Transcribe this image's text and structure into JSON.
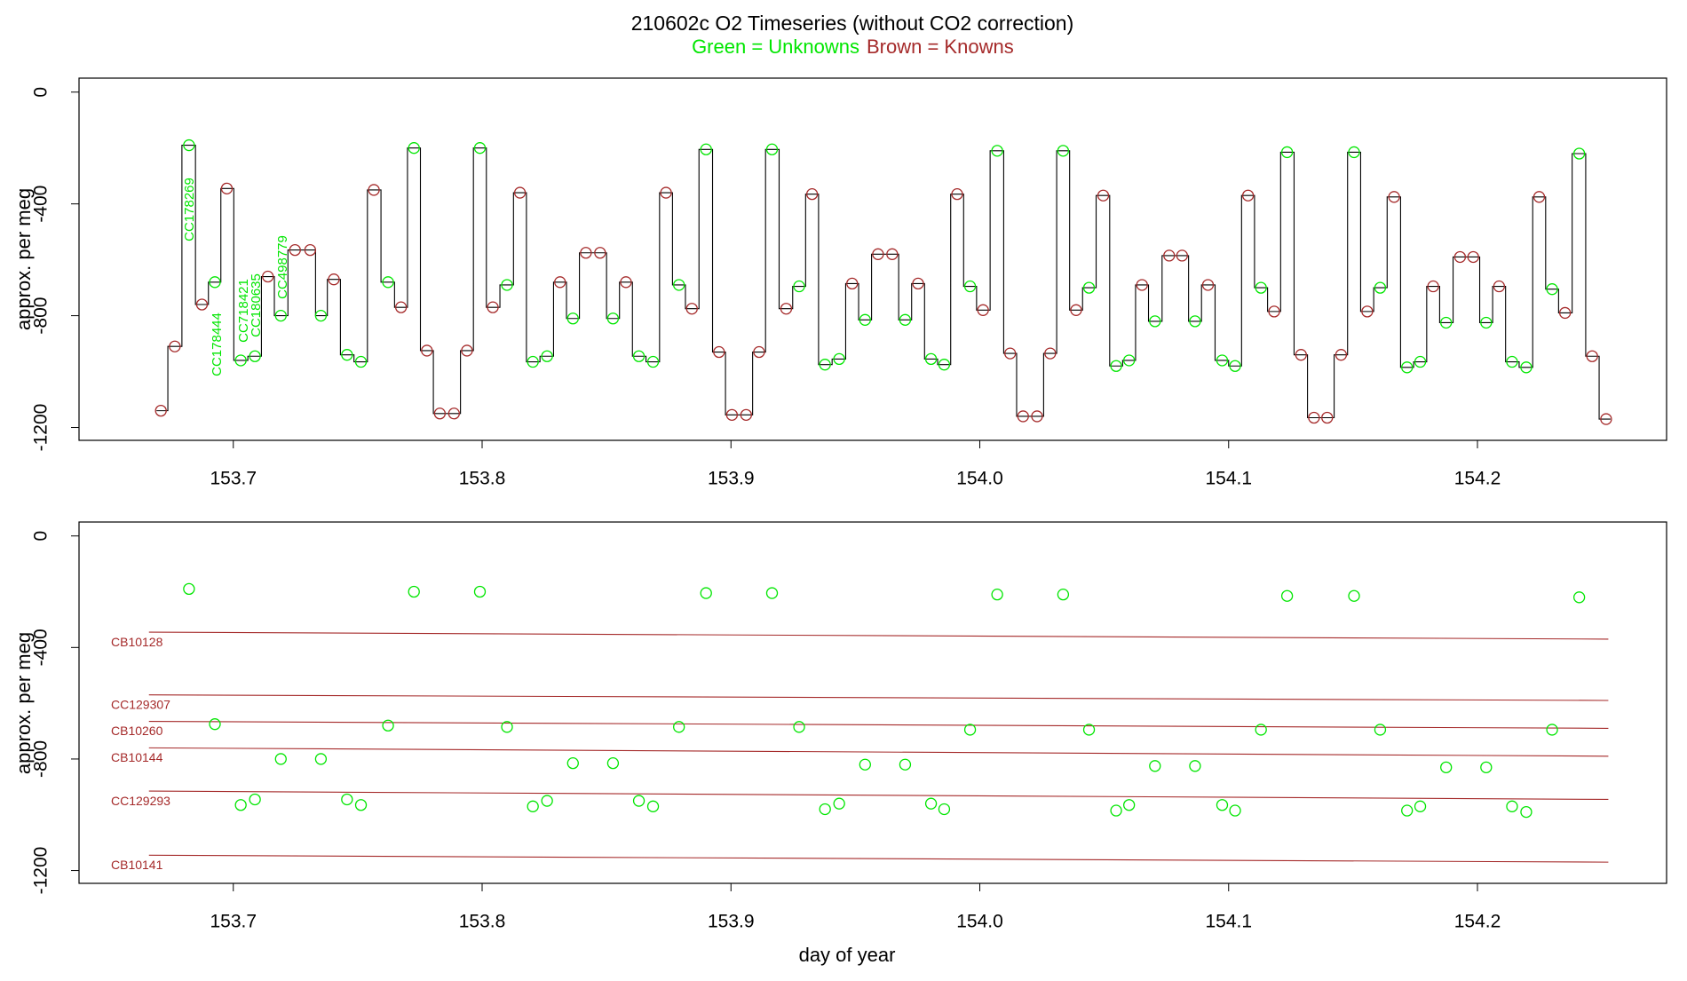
{
  "chart_data": [
    {
      "type": "line",
      "title": "210602c   O2 Timeseries (without CO2 correction)",
      "ylabel": "approx. per meg",
      "xlim": [
        153.638,
        154.276
      ],
      "ylim": [
        -1246,
        50
      ],
      "xticks": [
        153.7,
        153.8,
        153.9,
        {
          "value": 154,
          "label": "154.0"
        },
        154.1,
        154.2
      ],
      "yticks": [
        -1200,
        -800,
        -400,
        0
      ],
      "trace_color": "#000000",
      "series": [
        {
          "name": "Green = Unknowns",
          "color": "#00e600",
          "x": [
            153.6822,
            153.6926,
            153.703,
            153.7087,
            153.7191,
            153.7352,
            153.7457,
            153.7513,
            153.7622,
            153.7726,
            153.7991,
            153.81,
            153.8204,
            153.8261,
            153.8365,
            153.8526,
            153.863,
            153.8687,
            153.8791,
            153.89,
            153.9165,
            153.9274,
            153.9378,
            153.9435,
            153.9539,
            153.97,
            153.9804,
            153.9857,
            153.9961,
            154.007,
            154.0335,
            154.0439,
            154.0548,
            154.06,
            154.0704,
            154.0865,
            154.0974,
            154.1026,
            154.113,
            154.1235,
            154.1504,
            154.1609,
            154.1717,
            154.177,
            154.1874,
            154.2035,
            154.2139,
            154.2196,
            154.23,
            154.2409
          ],
          "values": [
            -190,
            -680,
            -960,
            -945,
            -800,
            -800,
            -940,
            -965,
            -680,
            -200,
            -200,
            -690,
            -965,
            -945,
            -810,
            -810,
            -945,
            -965,
            -690,
            -205,
            -205,
            -695,
            -975,
            -955,
            -815,
            -815,
            -955,
            -975,
            -695,
            -210,
            -210,
            -700,
            -980,
            -960,
            -820,
            -820,
            -960,
            -980,
            -700,
            -215,
            -215,
            -700,
            -985,
            -965,
            -825,
            -825,
            -965,
            -985,
            -705,
            -220
          ]
        },
        {
          "name": "Brown = Knowns",
          "color": "#a52a2a",
          "x": [
            153.6709,
            153.6765,
            153.6874,
            153.6974,
            153.7139,
            153.7248,
            153.7309,
            153.7404,
            153.7565,
            153.7674,
            153.7778,
            153.783,
            153.7887,
            153.7939,
            153.8043,
            153.8152,
            153.8313,
            153.8417,
            153.8474,
            153.8578,
            153.8739,
            153.8843,
            153.8952,
            153.9004,
            153.9061,
            153.9113,
            153.9222,
            153.9326,
            153.9487,
            153.9591,
            153.9648,
            153.9752,
            153.9909,
            154.0013,
            154.0122,
            154.0174,
            154.023,
            154.0283,
            154.0387,
            154.0496,
            154.0652,
            154.0761,
            154.0813,
            154.0917,
            154.1078,
            154.1183,
            154.1291,
            154.1343,
            154.1396,
            154.1452,
            154.1557,
            154.1665,
            154.1822,
            154.193,
            154.1983,
            154.2087,
            154.2248,
            154.2352,
            154.2461,
            154.2517
          ],
          "values": [
            -1140,
            -910,
            -760,
            -345,
            -660,
            -565,
            -565,
            -670,
            -350,
            -770,
            -925,
            -1150,
            -1150,
            -925,
            -770,
            -360,
            -680,
            -575,
            -575,
            -680,
            -360,
            -775,
            -930,
            -1155,
            -1155,
            -930,
            -775,
            -365,
            -685,
            -580,
            -580,
            -685,
            -365,
            -780,
            -935,
            -1160,
            -1160,
            -935,
            -780,
            -370,
            -690,
            -585,
            -585,
            -690,
            -370,
            -785,
            -940,
            -1165,
            -1165,
            -940,
            -785,
            -375,
            -695,
            -590,
            -590,
            -695,
            -375,
            -790,
            -945,
            -1170
          ]
        }
      ],
      "annotations": [
        "CC178269",
        "CC178444",
        "CC718421",
        "CC180635",
        "CC498779"
      ]
    },
    {
      "type": "scatter",
      "ylabel": "approx. per meg",
      "xlabel": "day of year",
      "xlim": [
        153.638,
        154.276
      ],
      "ylim": [
        -1246,
        50
      ],
      "xticks": [
        153.7,
        153.8,
        153.9,
        {
          "value": 154,
          "label": "154.0"
        },
        154.1,
        154.2
      ],
      "yticks": [
        -1200,
        -800,
        -400,
        0
      ],
      "series": [
        {
          "color": "#00e600",
          "x": [
            153.6822,
            153.6926,
            153.703,
            153.7087,
            153.7191,
            153.7352,
            153.7457,
            153.7513,
            153.7622,
            153.7726,
            153.7991,
            153.81,
            153.8204,
            153.8261,
            153.8365,
            153.8526,
            153.863,
            153.8687,
            153.8791,
            153.89,
            153.9165,
            153.9274,
            153.9378,
            153.9435,
            153.9539,
            153.97,
            153.9804,
            153.9857,
            153.9961,
            154.007,
            154.0335,
            154.0439,
            154.0548,
            154.06,
            154.0704,
            154.0865,
            154.0974,
            154.1026,
            154.113,
            154.1235,
            154.1504,
            154.1609,
            154.1717,
            154.177,
            154.1874,
            154.2035,
            154.2139,
            154.2196,
            154.23,
            154.2409
          ],
          "values": [
            -190,
            -675,
            -965,
            -945,
            -800,
            -800,
            -945,
            -965,
            -680,
            -200,
            -200,
            -685,
            -970,
            -950,
            -815,
            -815,
            -950,
            -970,
            -685,
            -205,
            -205,
            -685,
            -980,
            -960,
            -820,
            -820,
            -960,
            -980,
            -695,
            -210,
            -210,
            -695,
            -985,
            -965,
            -825,
            -825,
            -965,
            -985,
            -695,
            -215,
            -215,
            -695,
            -985,
            -970,
            -830,
            -830,
            -970,
            -990,
            -695,
            -220
          ]
        }
      ],
      "reference_lines": [
        {
          "label": "CB10128",
          "color": "#a52a2a",
          "x": [
            153.6661,
            154.2526
          ],
          "values": [
            -345,
            -370
          ]
        },
        {
          "label": "CC129307",
          "color": "#a52a2a",
          "x": [
            153.6661,
            154.2526
          ],
          "values": [
            -570,
            -590
          ]
        },
        {
          "label": "CB10260",
          "color": "#a52a2a",
          "x": [
            153.6661,
            154.2526
          ],
          "values": [
            -665,
            -690
          ]
        },
        {
          "label": "CB10144",
          "color": "#a52a2a",
          "x": [
            153.6661,
            154.2526
          ],
          "values": [
            -760,
            -790
          ]
        },
        {
          "label": "CC129293",
          "color": "#a52a2a",
          "x": [
            153.6661,
            154.2526
          ],
          "values": [
            -915,
            -945
          ]
        },
        {
          "label": "CB10141",
          "color": "#a52a2a",
          "x": [
            153.6661,
            154.2526
          ],
          "values": [
            -1145,
            -1170
          ]
        }
      ]
    }
  ]
}
